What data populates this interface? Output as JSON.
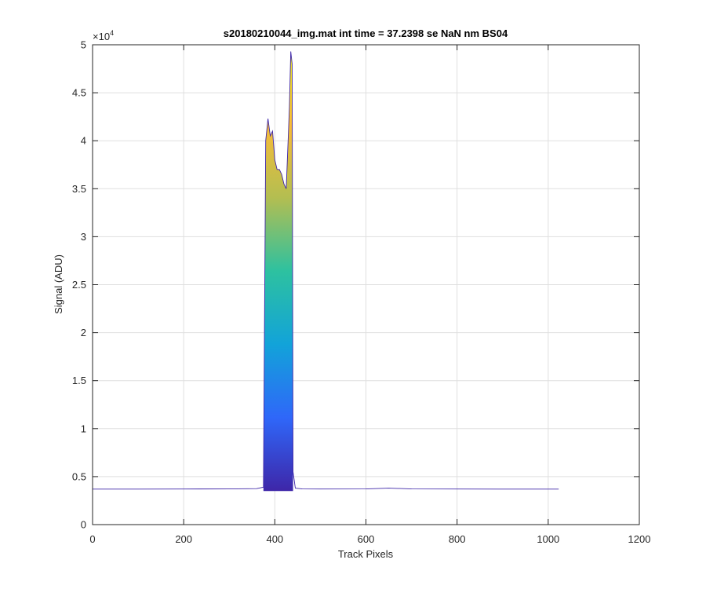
{
  "figure": {
    "background": "#ffffff",
    "axes_color": "#262626",
    "grid_color": "#dfdfdf"
  },
  "chart_data": {
    "type": "area",
    "title": "s20180210044_img.mat int time = 37.2398 se  NaN nm BS04",
    "xlabel": "Track Pixels",
    "ylabel": "Signal (ADU)",
    "xlim": [
      0,
      1200
    ],
    "ylim": [
      0,
      50000
    ],
    "grid": true,
    "y_exponent_label": "×10",
    "y_exponent_power": "4",
    "x_ticks": [
      0,
      200,
      400,
      600,
      800,
      1000,
      1200
    ],
    "x_tick_labels": [
      "0",
      "200",
      "400",
      "600",
      "800",
      "1000",
      "1200"
    ],
    "y_ticks": [
      0,
      5000,
      10000,
      15000,
      20000,
      25000,
      30000,
      35000,
      40000,
      45000,
      50000
    ],
    "y_tick_labels": [
      "0",
      "0.5",
      "1",
      "1.5",
      "2",
      "2.5",
      "3",
      "3.5",
      "4",
      "4.5",
      "5"
    ],
    "colormap": [
      "#3e26a8",
      "#2f67f9",
      "#12a3d9",
      "#2dc1a0",
      "#b3be51",
      "#f9bc38",
      "#f9fb15"
    ],
    "series": [
      {
        "x": [
          0,
          100,
          200,
          300,
          360,
          375,
          380,
          385,
          390,
          395,
          400,
          405,
          410,
          415,
          420,
          425,
          430,
          432,
          435,
          438,
          440,
          445,
          460,
          500,
          600,
          650,
          700,
          800,
          900,
          1000,
          1023
        ],
        "y": [
          3700,
          3700,
          3710,
          3720,
          3750,
          3900,
          40000,
          42300,
          40500,
          41000,
          38000,
          37000,
          37000,
          36500,
          35500,
          35000,
          41000,
          43500,
          49300,
          48000,
          5500,
          3800,
          3720,
          3710,
          3720,
          3800,
          3720,
          3710,
          3700,
          3700,
          3700
        ]
      }
    ]
  }
}
